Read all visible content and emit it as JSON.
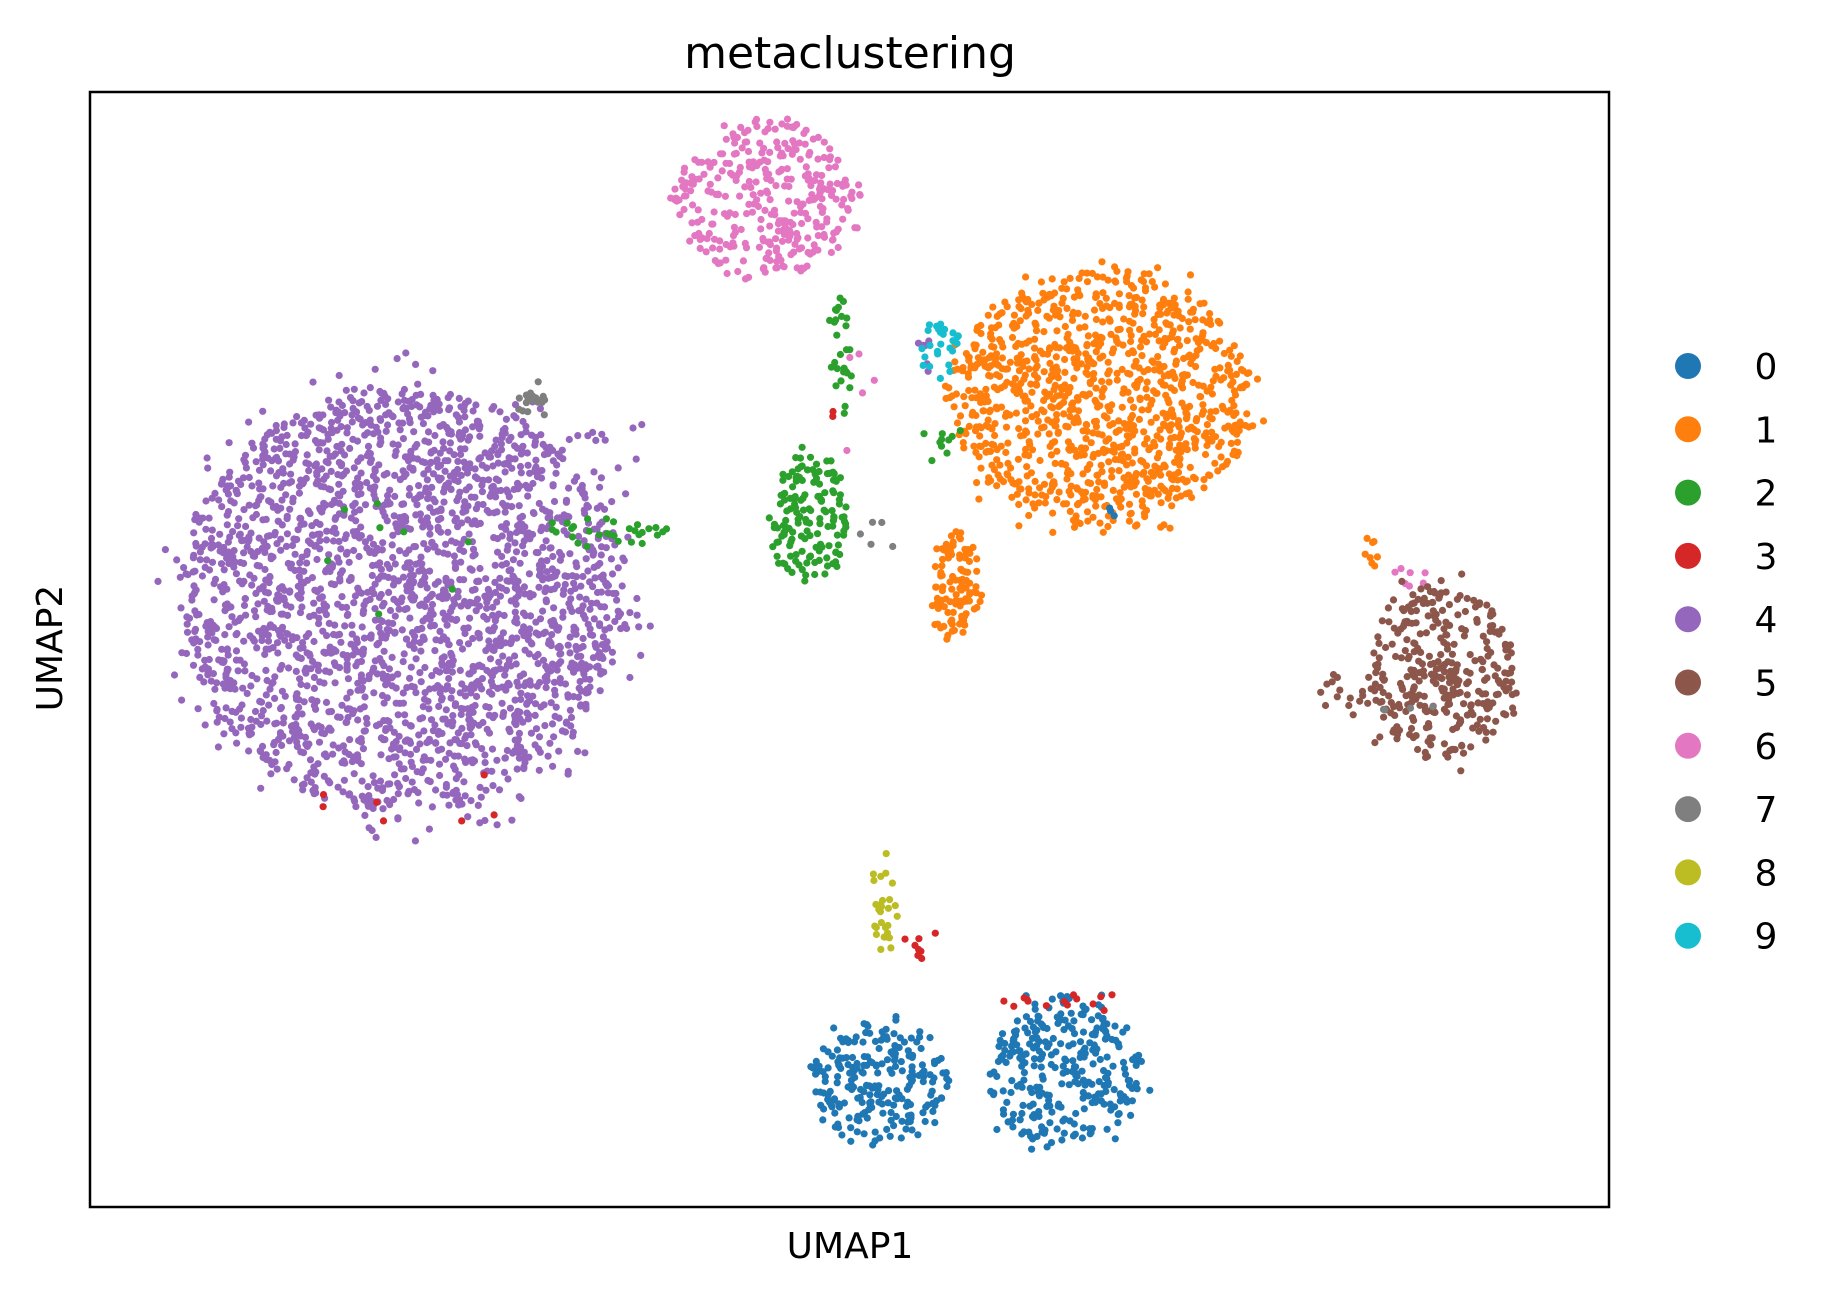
{
  "chart_data": {
    "type": "scatter",
    "title": "metaclustering",
    "xlabel": "UMAP1",
    "ylabel": "UMAP2",
    "xlim": [
      0,
      100
    ],
    "ylim": [
      0,
      100
    ],
    "grid": false,
    "ticks": false,
    "legend_placement": "right",
    "series": [
      {
        "name": "0",
        "color": "#1f77b4",
        "clusters": [
          {
            "cx": 52.0,
            "cy": 11.0,
            "rx": 4.6,
            "ry": 5.6,
            "n": 230
          },
          {
            "cx": 64.0,
            "cy": 12.0,
            "rx": 5.0,
            "ry": 6.8,
            "n": 300
          },
          {
            "cx": 67.3,
            "cy": 62.5,
            "rx": 0.4,
            "ry": 0.5,
            "n": 3
          }
        ]
      },
      {
        "name": "1",
        "color": "#ff7f0e",
        "clusters": [
          {
            "cx": 66.5,
            "cy": 72.5,
            "rx": 9.8,
            "ry": 11.5,
            "n": 1100
          },
          {
            "cx": 57.0,
            "cy": 55.5,
            "rx": 1.5,
            "ry": 5.2,
            "n": 110
          },
          {
            "cx": 84.5,
            "cy": 58.5,
            "rx": 0.6,
            "ry": 1.5,
            "n": 8
          }
        ]
      },
      {
        "name": "2",
        "color": "#2ca02c",
        "clusters": [
          {
            "cx": 47.5,
            "cy": 61.5,
            "rx": 2.4,
            "ry": 6.0,
            "n": 150
          },
          {
            "cx": 49.5,
            "cy": 77.0,
            "rx": 0.8,
            "ry": 6.0,
            "n": 28
          },
          {
            "cx": 34.0,
            "cy": 60.5,
            "rx": 3.5,
            "ry": 1.6,
            "n": 30
          },
          {
            "cx": 56.0,
            "cy": 68.5,
            "rx": 1.2,
            "ry": 2.0,
            "n": 10
          },
          {
            "cx": 19.0,
            "cy": 58.5,
            "rx": 7.0,
            "ry": 5.0,
            "n": 8
          }
        ]
      },
      {
        "name": "3",
        "color": "#d62728",
        "clusters": [
          {
            "cx": 54.5,
            "cy": 23.5,
            "rx": 1.0,
            "ry": 1.5,
            "n": 8
          },
          {
            "cx": 64.0,
            "cy": 18.5,
            "rx": 4.0,
            "ry": 0.8,
            "n": 14
          },
          {
            "cx": 22.0,
            "cy": 36.0,
            "rx": 8.0,
            "ry": 3.0,
            "n": 7
          },
          {
            "cx": 49.5,
            "cy": 71.0,
            "rx": 0.4,
            "ry": 0.4,
            "n": 2
          }
        ]
      },
      {
        "name": "4",
        "color": "#9467bd",
        "clusters": [
          {
            "cx": 20.5,
            "cy": 54.5,
            "rx": 14.5,
            "ry": 19.0,
            "n": 2500
          },
          {
            "cx": 34.0,
            "cy": 68.0,
            "rx": 3.2,
            "ry": 3.0,
            "n": 12
          },
          {
            "cx": 54.8,
            "cy": 76.5,
            "rx": 1.0,
            "ry": 1.5,
            "n": 6
          }
        ]
      },
      {
        "name": "5",
        "color": "#8c564b",
        "clusters": [
          {
            "cx": 89.0,
            "cy": 48.0,
            "rx": 4.8,
            "ry": 8.0,
            "n": 330
          },
          {
            "cx": 83.5,
            "cy": 46.0,
            "rx": 3.0,
            "ry": 1.6,
            "n": 22
          }
        ]
      },
      {
        "name": "6",
        "color": "#e377c2",
        "clusters": [
          {
            "cx": 44.5,
            "cy": 90.5,
            "rx": 6.2,
            "ry": 7.0,
            "n": 340
          },
          {
            "cx": 87.0,
            "cy": 56.5,
            "rx": 1.5,
            "ry": 1.5,
            "n": 7
          },
          {
            "cx": 50.5,
            "cy": 72.0,
            "rx": 2.8,
            "ry": 6.0,
            "n": 5
          }
        ]
      },
      {
        "name": "7",
        "color": "#7f7f7f",
        "clusters": [
          {
            "cx": 29.2,
            "cy": 72.3,
            "rx": 1.0,
            "ry": 1.6,
            "n": 20
          },
          {
            "cx": 51.8,
            "cy": 60.0,
            "rx": 1.2,
            "ry": 1.5,
            "n": 5
          },
          {
            "cx": 87.5,
            "cy": 44.5,
            "rx": 3.0,
            "ry": 1.0,
            "n": 4
          }
        ]
      },
      {
        "name": "8",
        "color": "#bcbd22",
        "clusters": [
          {
            "cx": 52.3,
            "cy": 27.0,
            "rx": 0.6,
            "ry": 4.2,
            "n": 28
          }
        ]
      },
      {
        "name": "9",
        "color": "#17becf",
        "clusters": [
          {
            "cx": 55.8,
            "cy": 77.0,
            "rx": 1.3,
            "ry": 2.6,
            "n": 26
          }
        ]
      }
    ]
  }
}
